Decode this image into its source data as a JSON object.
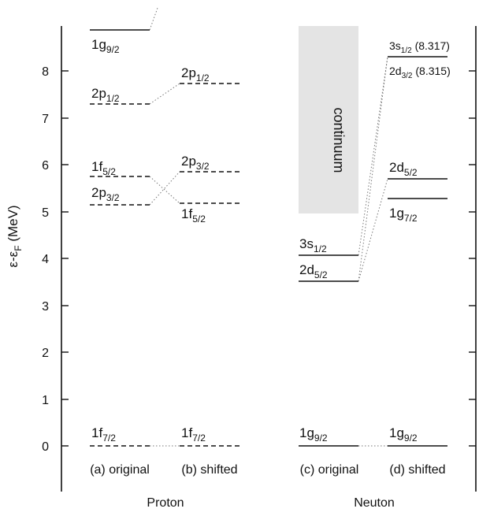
{
  "yaxis": {
    "label": "ε-ε",
    "label_sub": "F",
    "label_unit": " (MeV)",
    "ticks": [
      "0",
      "1",
      "2",
      "3",
      "4",
      "5",
      "6",
      "7",
      "8"
    ]
  },
  "columns": {
    "proton_original": "(a) original",
    "proton_shifted": "(b) shifted",
    "neutron_original": "(c) original",
    "neutron_shifted": "(d) shifted"
  },
  "groups": {
    "proton": "Proton",
    "neutron": "Neuton"
  },
  "continuum": {
    "label": "continuum",
    "range_mev": [
      4.5,
      9.5
    ]
  },
  "levels": {
    "proton_original": [
      {
        "main": "1g",
        "sub": "9/2",
        "energy": 8.85,
        "style": "solid"
      },
      {
        "main": "2p",
        "sub": "1/2",
        "energy": 7.3,
        "style": "dashed"
      },
      {
        "main": "1f",
        "sub": "5/2",
        "energy": 5.75,
        "style": "dashed"
      },
      {
        "main": "2p",
        "sub": "3/2",
        "energy": 5.15,
        "style": "dashed"
      },
      {
        "main": "1f",
        "sub": "7/2",
        "energy": 0.0,
        "style": "dashed"
      }
    ],
    "proton_shifted": [
      {
        "main": "2p",
        "sub": "1/2",
        "energy": 7.75,
        "style": "dashed"
      },
      {
        "main": "2p",
        "sub": "3/2",
        "energy": 5.85,
        "style": "dashed"
      },
      {
        "main": "1f",
        "sub": "5/2",
        "energy": 4.72,
        "style": "dashed"
      },
      {
        "main": "1f",
        "sub": "7/2",
        "energy": 0.0,
        "style": "dashed"
      }
    ],
    "neutron_original": [
      {
        "main": "3s",
        "sub": "1/2",
        "energy": 3.62,
        "style": "solid"
      },
      {
        "main": "2d",
        "sub": "5/2",
        "energy": 3.02,
        "style": "solid"
      },
      {
        "main": "1g",
        "sub": "9/2",
        "energy": 0.0,
        "style": "solid"
      }
    ],
    "neutron_shifted": [
      {
        "main": "3s",
        "sub": "1/2",
        "suffix": " (8.317)",
        "energy": 8.317,
        "style": "solid"
      },
      {
        "main": "2d",
        "sub": "3/2",
        "suffix": " (8.315)",
        "energy": 8.315,
        "style": "none"
      },
      {
        "main": "2d",
        "sub": "5/2",
        "energy": 5.72,
        "style": "solid"
      },
      {
        "main": "1g",
        "sub": "7/2",
        "energy": 5.3,
        "style": "solid"
      },
      {
        "main": "1g",
        "sub": "9/2",
        "energy": 0.0,
        "style": "solid"
      }
    ]
  }
}
